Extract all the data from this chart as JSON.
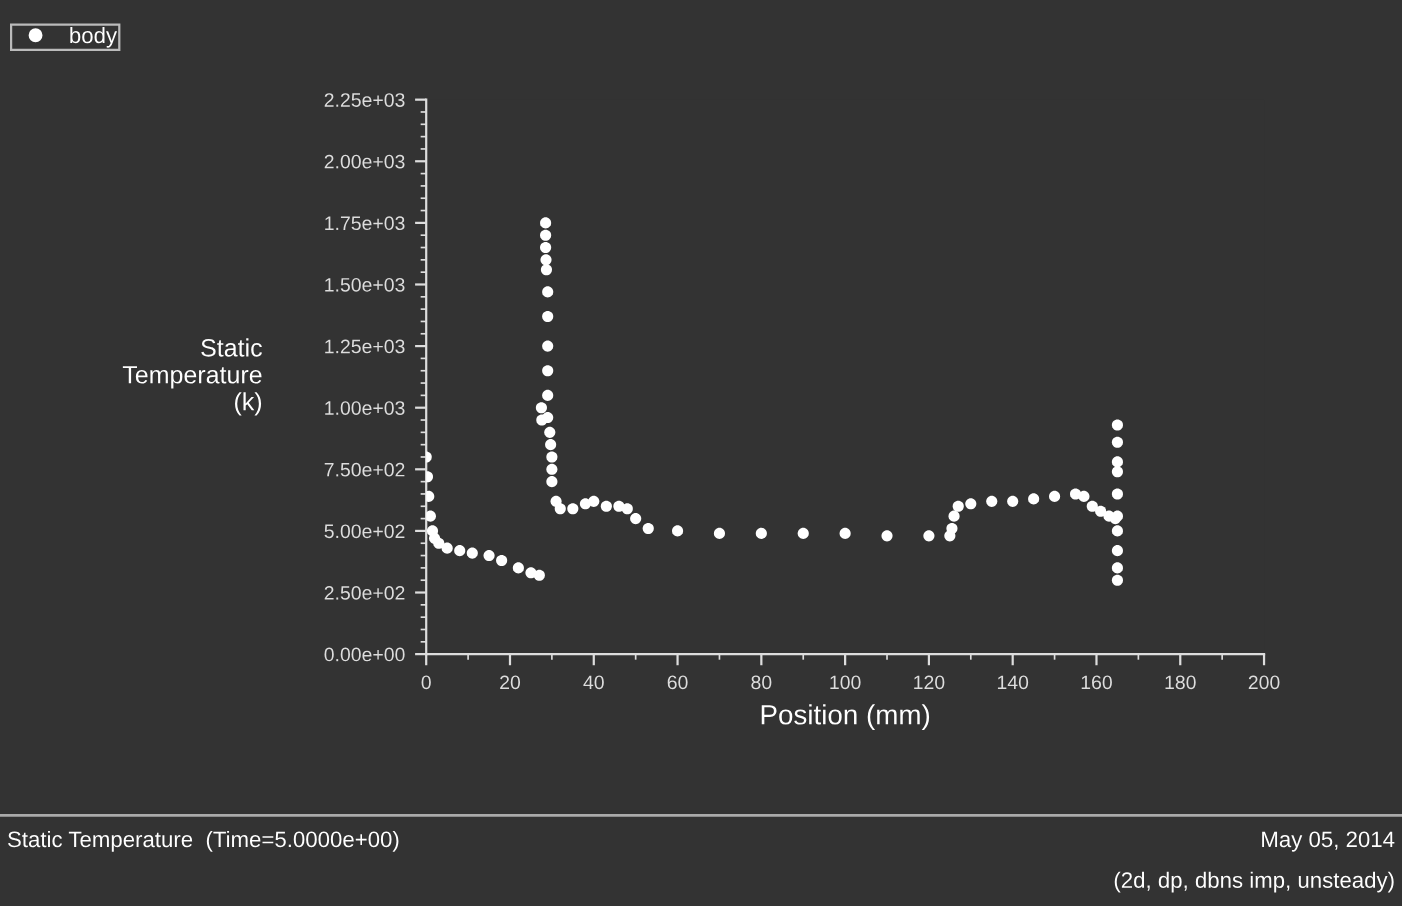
{
  "chart_data": {
    "type": "scatter",
    "xlabel": "Position (mm)",
    "ylabel": "Static\nTemperature\n(k)",
    "series": [
      {
        "name": "body",
        "color": "#ffffff",
        "x": [
          0,
          0.3,
          0.6,
          1,
          1.5,
          2,
          3,
          5,
          8,
          11,
          15,
          18,
          22,
          25,
          27,
          27.5,
          27.6,
          28.5,
          28.5,
          28.5,
          28.6,
          28.7,
          29,
          29,
          29,
          29,
          29,
          29,
          29.5,
          29.7,
          30,
          30,
          30,
          31,
          32,
          35,
          38,
          40,
          43,
          46,
          48,
          50,
          53,
          60,
          70,
          80,
          90,
          100,
          110,
          120,
          125,
          125.5,
          126,
          127,
          130,
          135,
          140,
          145,
          150,
          155,
          157,
          159,
          161,
          163,
          164.5,
          165,
          165,
          165,
          165,
          165,
          165,
          165,
          165,
          165,
          165
        ],
        "values": [
          800,
          720,
          640,
          560,
          500,
          470,
          450,
          430,
          420,
          410,
          400,
          380,
          350,
          330,
          320,
          1000,
          950,
          1750,
          1700,
          1650,
          1600,
          1560,
          1470,
          1370,
          1250,
          1150,
          1050,
          960,
          900,
          850,
          800,
          750,
          700,
          620,
          590,
          590,
          610,
          620,
          600,
          600,
          590,
          550,
          510,
          500,
          490,
          490,
          490,
          490,
          480,
          480,
          480,
          510,
          560,
          600,
          610,
          620,
          620,
          630,
          640,
          650,
          640,
          600,
          580,
          560,
          550,
          930,
          860,
          780,
          740,
          650,
          560,
          500,
          420,
          350,
          300
        ]
      }
    ],
    "xlim": [
      0,
      200
    ],
    "xticks": [
      0,
      20,
      40,
      60,
      80,
      100,
      120,
      140,
      160,
      180,
      200
    ],
    "ylim": [
      0,
      2250
    ],
    "yticks": [
      {
        "value": 0,
        "label": "0.00e+00"
      },
      {
        "value": 250,
        "label": "2.50e+02"
      },
      {
        "value": 500,
        "label": "5.00e+02"
      },
      {
        "value": 750,
        "label": "7.50e+02"
      },
      {
        "value": 1000,
        "label": "1.00e+03"
      },
      {
        "value": 1250,
        "label": "1.25e+03"
      },
      {
        "value": 1500,
        "label": "1.50e+03"
      },
      {
        "value": 1750,
        "label": "1.75e+03"
      },
      {
        "value": 2000,
        "label": "2.00e+03"
      },
      {
        "value": 2250,
        "label": "2.25e+03"
      }
    ],
    "marker": "circle",
    "legend": "top left",
    "grid": false,
    "annotations": [
      "Static Temperature  (Time=5.0000e+00)",
      "May 05, 2014",
      "(2d, dp, dbns imp, unsteady)"
    ]
  }
}
